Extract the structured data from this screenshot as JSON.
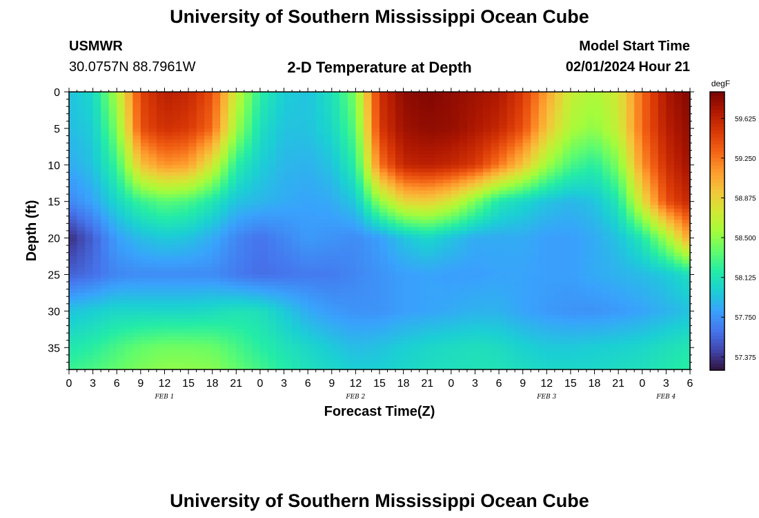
{
  "page": {
    "title": "University of Southern Mississippi Ocean Cube",
    "station_name": "USMWR",
    "station_coords": "30.0757N  88.7961W",
    "model_start_label": "Model Start Time",
    "model_start_value": "02/01/2024 Hour 21",
    "footer_title": "University of Southern Mississippi Ocean Cube"
  },
  "chart_data": {
    "type": "heatmap",
    "title": "2-D Temperature at Depth",
    "xlabel": "Forecast Time(Z)",
    "ylabel": "Depth (ft)",
    "x_range_hours": [
      0,
      78
    ],
    "x_tick_labels": [
      "0",
      "3",
      "6",
      "9",
      "12",
      "15",
      "18",
      "21",
      "0",
      "3",
      "6",
      "9",
      "12",
      "15",
      "18",
      "21",
      "0",
      "3",
      "6",
      "9",
      "12",
      "15",
      "18",
      "21",
      "0",
      "3",
      "6"
    ],
    "date_labels": [
      {
        "label": "FEB 1",
        "hour": 12
      },
      {
        "label": "FEB 2",
        "hour": 36
      },
      {
        "label": "FEB 3",
        "hour": 60
      },
      {
        "label": "FEB 4",
        "hour": 75
      }
    ],
    "y_range_ft": [
      0,
      38
    ],
    "y_ticks": [
      0,
      5,
      10,
      15,
      20,
      25,
      30,
      35
    ],
    "y_tick_labels": [
      "0",
      "5",
      "10",
      "15",
      "20",
      "25",
      "30",
      "35"
    ],
    "colorbar": {
      "unit": "degF",
      "min": 57.25,
      "max": 59.875,
      "ticks": [
        57.375,
        57.75,
        58.125,
        58.5,
        58.875,
        59.25,
        59.625
      ],
      "tick_labels": [
        "57.375",
        "57.750",
        "58.125",
        "58.500",
        "58.875",
        "59.250",
        "59.625"
      ],
      "colors": [
        "#30123b",
        "#4145ab",
        "#4675ed",
        "#39a2fc",
        "#1bcfd4",
        "#24eca6",
        "#61fc6c",
        "#a4fc3b",
        "#d1e834",
        "#f3c63a",
        "#fe9b2d",
        "#f36315",
        "#d93806",
        "#b11901",
        "#7a0402"
      ]
    },
    "field": {
      "description": "Temperature (degF) estimated from the image; rows = depths, columns = forecast hour",
      "depths_ft": [
        0,
        5,
        10,
        15,
        20,
        25,
        30,
        35,
        38
      ],
      "hours": [
        0,
        3,
        6,
        9,
        12,
        15,
        18,
        21,
        24,
        27,
        30,
        33,
        36,
        39,
        42,
        45,
        48,
        51,
        54,
        57,
        60,
        63,
        66,
        69,
        72,
        75,
        78
      ],
      "temps": [
        [
          57.95,
          58.05,
          58.6,
          59.45,
          59.65,
          59.6,
          59.4,
          58.7,
          58.2,
          58.0,
          57.95,
          58.1,
          58.45,
          59.55,
          59.8,
          59.85,
          59.8,
          59.75,
          59.7,
          59.5,
          59.1,
          58.7,
          58.6,
          58.75,
          59.3,
          59.7,
          59.85
        ],
        [
          57.92,
          58.0,
          58.45,
          59.4,
          59.55,
          59.5,
          59.3,
          58.55,
          58.1,
          57.95,
          57.95,
          58.05,
          58.35,
          59.5,
          59.75,
          59.8,
          59.78,
          59.7,
          59.6,
          59.4,
          58.95,
          58.6,
          58.5,
          58.7,
          59.3,
          59.65,
          59.8
        ],
        [
          57.85,
          57.95,
          58.25,
          58.95,
          59.15,
          59.1,
          58.75,
          58.2,
          58.0,
          57.9,
          57.88,
          57.95,
          58.2,
          59.25,
          59.6,
          59.65,
          59.6,
          59.5,
          59.25,
          58.95,
          58.55,
          58.3,
          58.2,
          58.45,
          59.15,
          59.55,
          59.75
        ],
        [
          57.7,
          57.82,
          58.05,
          58.25,
          58.35,
          58.3,
          58.15,
          57.95,
          57.9,
          57.85,
          57.82,
          57.85,
          57.98,
          58.5,
          58.85,
          58.9,
          58.75,
          58.45,
          58.15,
          58.05,
          57.95,
          57.9,
          57.95,
          58.15,
          58.8,
          59.4,
          59.6
        ],
        [
          57.35,
          57.55,
          57.8,
          57.92,
          57.98,
          57.95,
          57.85,
          57.7,
          57.62,
          57.7,
          57.78,
          57.75,
          57.72,
          57.8,
          57.95,
          58.05,
          57.95,
          57.85,
          57.85,
          57.85,
          57.8,
          57.8,
          57.85,
          57.95,
          58.15,
          58.55,
          59.1
        ],
        [
          57.55,
          57.6,
          57.7,
          57.72,
          57.72,
          57.72,
          57.72,
          57.65,
          57.6,
          57.62,
          57.65,
          57.65,
          57.7,
          57.75,
          57.8,
          57.82,
          57.8,
          57.8,
          57.82,
          57.82,
          57.8,
          57.8,
          57.85,
          57.88,
          57.92,
          57.98,
          58.1
        ],
        [
          57.95,
          58.0,
          58.05,
          58.05,
          58.05,
          58.05,
          58.08,
          58.12,
          58.1,
          57.98,
          57.85,
          57.78,
          57.75,
          57.75,
          57.8,
          57.82,
          57.85,
          57.88,
          57.88,
          57.82,
          57.78,
          57.75,
          57.75,
          57.78,
          57.82,
          57.88,
          57.95
        ],
        [
          58.15,
          58.2,
          58.3,
          58.38,
          58.42,
          58.42,
          58.4,
          58.3,
          58.2,
          58.12,
          58.05,
          57.98,
          57.92,
          57.95,
          58.0,
          58.05,
          58.08,
          58.1,
          58.08,
          58.02,
          57.98,
          57.98,
          58.0,
          58.02,
          58.05,
          58.1,
          58.15
        ],
        [
          58.25,
          58.3,
          58.38,
          58.45,
          58.5,
          58.5,
          58.48,
          58.38,
          58.28,
          58.18,
          58.1,
          58.05,
          58.0,
          58.0,
          58.05,
          58.08,
          58.1,
          58.12,
          58.12,
          58.08,
          58.05,
          58.05,
          58.05,
          58.08,
          58.1,
          58.15,
          58.2
        ]
      ]
    }
  }
}
